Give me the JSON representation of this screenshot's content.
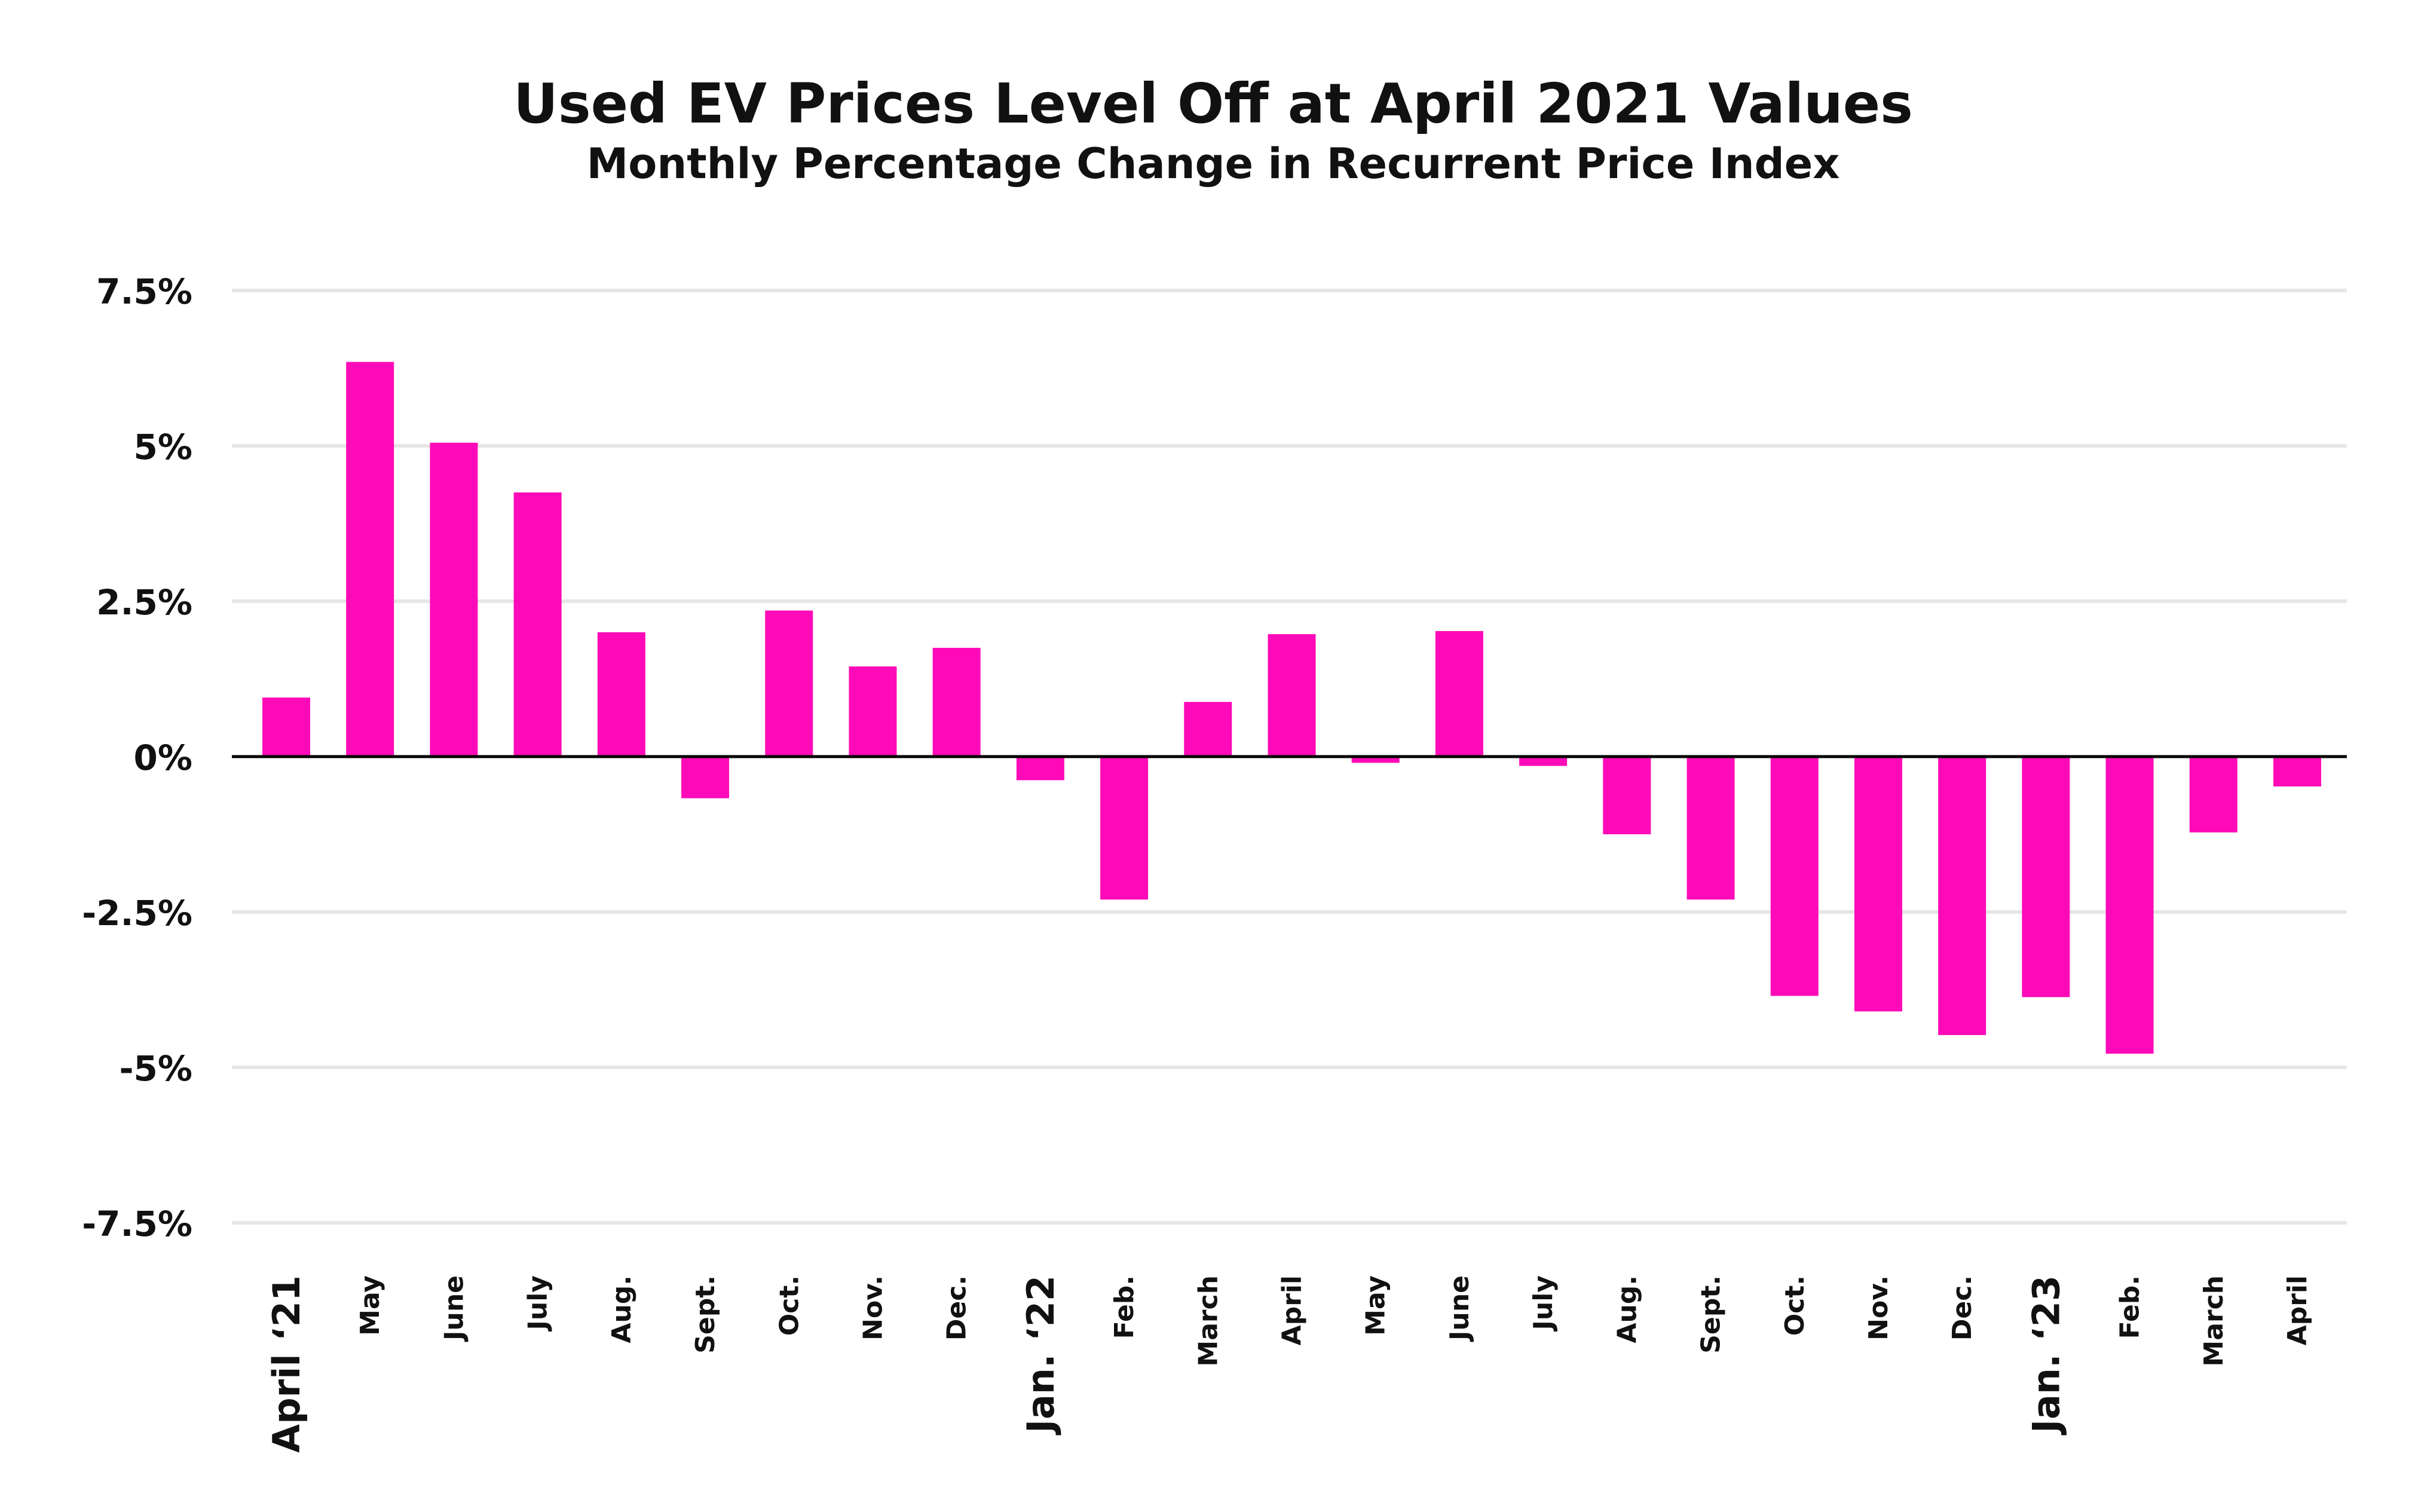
{
  "chart_data": {
    "type": "bar",
    "title": "Used EV Prices Level Off at April 2021 Values",
    "subtitle": "Monthly Percentage Change in Recurrent Price Index",
    "xlabel": "",
    "ylabel": "",
    "ylim": [
      -7.5,
      7.5
    ],
    "yticks": [
      7.5,
      5,
      2.5,
      0,
      -2.5,
      -5,
      -7.5
    ],
    "ytick_labels": [
      "7.5%",
      "5%",
      "2.5%",
      "0%",
      "-2.5%",
      "-5%",
      "-7.5%"
    ],
    "grid": true,
    "bar_color": "#FF0AB8",
    "categories": [
      "April ‘21",
      "May",
      "June",
      "July",
      "Aug.",
      "Sept.",
      "Oct.",
      "Nov.",
      "Dec.",
      "Jan. ‘22",
      "Feb.",
      "March",
      "April",
      "May",
      "June",
      "July",
      "Aug.",
      "Sept.",
      "Oct.",
      "Nov.",
      "Dec.",
      "Jan. ‘23",
      "Feb.",
      "March",
      "April"
    ],
    "bold_categories": [
      "April ‘21",
      "Jan. ‘22",
      "Jan. ‘23"
    ],
    "values": [
      0.95,
      6.35,
      5.05,
      4.25,
      2.0,
      -0.67,
      2.35,
      1.45,
      1.75,
      -0.38,
      -2.3,
      0.88,
      1.97,
      -0.1,
      2.02,
      -0.15,
      -1.25,
      -2.3,
      -3.85,
      -4.1,
      -4.48,
      -3.87,
      -4.78,
      -1.22,
      -0.48
    ]
  }
}
